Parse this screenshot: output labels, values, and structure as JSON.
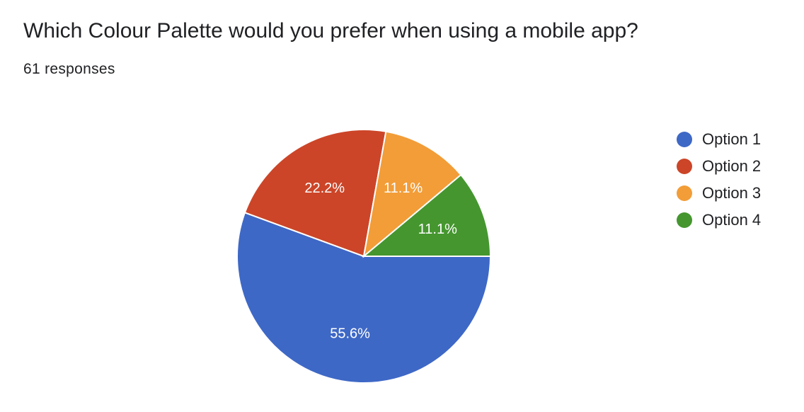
{
  "header": {
    "title": "Which Colour Palette would you prefer when using a mobile app?",
    "responses": "61 responses"
  },
  "chart_data": {
    "type": "pie",
    "categories": [
      "Option 1",
      "Option 2",
      "Option 3",
      "Option 4"
    ],
    "values": [
      55.6,
      22.2,
      11.1,
      11.1
    ],
    "value_labels": [
      "55.6%",
      "22.2%",
      "11.1%",
      "11.1%"
    ],
    "colors": [
      "#3e68c6",
      "#cc4528",
      "#f29d38",
      "#45962f"
    ],
    "title": "Which Colour Palette would you prefer when using a mobile app?",
    "subtitle": "61 responses",
    "legend_position": "right"
  }
}
